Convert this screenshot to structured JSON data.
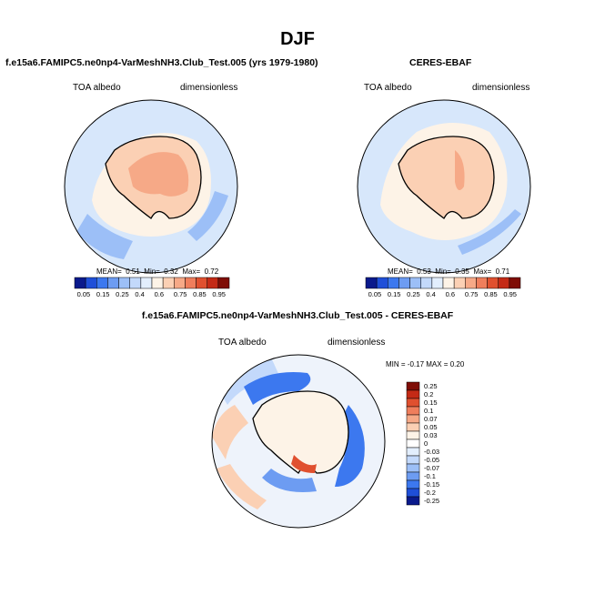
{
  "page": {
    "title": "DJF"
  },
  "panels": [
    {
      "title": "f.e15a6.FAMIPC5.ne0np4-VarMeshNH3.Club_Test.005 (yrs 1979-1980)",
      "left_label": "TOA albedo",
      "right_label": "dimensionless",
      "stats": {
        "mean_label": "MEAN=",
        "mean": "0.51",
        "min_label": "Min=",
        "min": "0.32",
        "max_label": "Max=",
        "max": "0.72"
      }
    },
    {
      "title": "CERES-EBAF",
      "left_label": "TOA albedo",
      "right_label": "dimensionless",
      "stats": {
        "mean_label": "MEAN=",
        "mean": "0.53",
        "min_label": "Min=",
        "min": "0.35",
        "max_label": "Max=",
        "max": "0.71"
      }
    },
    {
      "title": "f.e15a6.FAMIPC5.ne0np4-VarMeshNH3.Club_Test.005 - CERES-EBAF",
      "left_label": "TOA albedo",
      "right_label": "dimensionless",
      "stats_text": "MIN =  -0.17 MAX =   0.20"
    }
  ],
  "colorbar_abs": {
    "labels": [
      "0.05",
      "0.15",
      "0.25",
      "0.4",
      "0.6",
      "0.75",
      "0.85",
      "0.95"
    ],
    "colors": [
      "#0a1a8c",
      "#1f4fd8",
      "#3c78ef",
      "#6d9cf2",
      "#9cbff7",
      "#c3d9fb",
      "#e2eefd",
      "#fdf3e7",
      "#fbd0b4",
      "#f6a987",
      "#ef7e5c",
      "#e0502f",
      "#c42a16",
      "#7f0d06"
    ]
  },
  "colorbar_diff": {
    "labels": [
      "0.25",
      "0.2",
      "0.15",
      "0.1",
      "0.07",
      "0.05",
      "0.03",
      "0",
      "-0.03",
      "-0.05",
      "-0.07",
      "-0.1",
      "-0.15",
      "-0.2",
      "-0.25"
    ],
    "colors": [
      "#7f0d06",
      "#c42a16",
      "#e0502f",
      "#ef7e5c",
      "#f6a987",
      "#fbd0b4",
      "#fdf3e7",
      "#ffffff",
      "#e2eefd",
      "#c3d9fb",
      "#9cbff7",
      "#6d9cf2",
      "#3c78ef",
      "#1f4fd8",
      "#0a1a8c"
    ]
  },
  "colors": {
    "ocean_model": "#d7e7fb",
    "ocean_obs": "#d7e7fb",
    "ice_peach": "#fbd0b4",
    "interior_orange": "#f6a987",
    "diff_ocean": "#eef3fb",
    "diff_land": "#fdf3e7",
    "coast": "#000000"
  }
}
